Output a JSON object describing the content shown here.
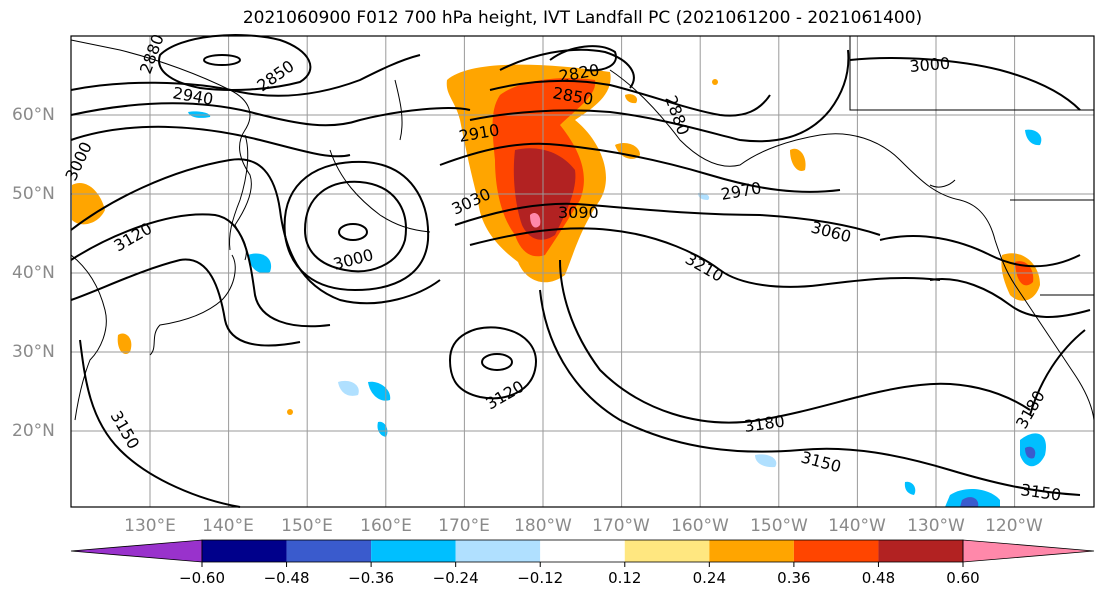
{
  "title": "2021060900 F012 700 hPa height, IVT Landfall PC (2021061200 - 2021061400)",
  "map": {
    "lat_labels": [
      "60°N",
      "50°N",
      "40°N",
      "30°N",
      "20°N"
    ],
    "lon_labels": [
      "130°E",
      "140°E",
      "150°E",
      "160°E",
      "170°E",
      "180°W",
      "170°W",
      "160°W",
      "150°W",
      "140°W",
      "130°W",
      "120°W"
    ],
    "contour_labels": [
      "2880",
      "2850",
      "2940",
      "3000",
      "3120",
      "2910",
      "2820",
      "2850",
      "2880",
      "3030",
      "3090",
      "2970",
      "3060",
      "3000",
      "3210",
      "3120",
      "3180",
      "3150",
      "3150",
      "3180",
      "3150",
      "3000"
    ]
  },
  "colorbar": {
    "tick_labels": [
      "−0.60",
      "−0.48",
      "−0.36",
      "−0.24",
      "−0.12",
      "0.12",
      "0.24",
      "0.36",
      "0.48",
      "0.60"
    ],
    "colors": [
      "#9932cc",
      "#00008b",
      "#3a5bcd",
      "#00bfff",
      "#b0e0ff",
      "#ffffff",
      "#ffe780",
      "#ffa500",
      "#ff4500",
      "#b22222",
      "#ff88aa"
    ]
  },
  "colors": {
    "grid": "#9a9a9a",
    "coast": "#000000",
    "contour": "#000000",
    "axis_labels": "#8a8a8a"
  }
}
